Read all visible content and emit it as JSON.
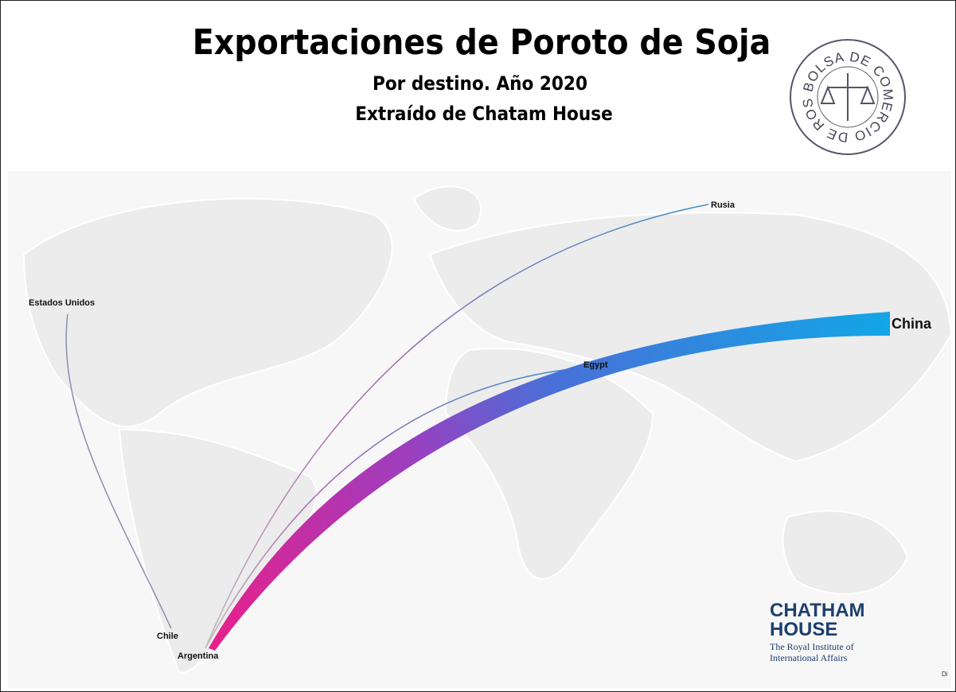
{
  "header": {
    "title": "Exportaciones de Poroto de Soja",
    "subtitle": "Por destino. Año 2020",
    "source": "Extraído de Chatam House"
  },
  "logo": {
    "ring_text": "BOLSA DE COMERCIO DE ROSARIO"
  },
  "places": {
    "origin": "Argentina",
    "chile": "Chile",
    "usa": "Estados Unidos",
    "russia": "Rusia",
    "egypt": "Egypt",
    "china": "China"
  },
  "credit": {
    "line1": "CHATHAM",
    "line2": "HOUSE",
    "line3": "The Royal Institute of",
    "line4": "International Affairs",
    "corner": "Di"
  }
}
